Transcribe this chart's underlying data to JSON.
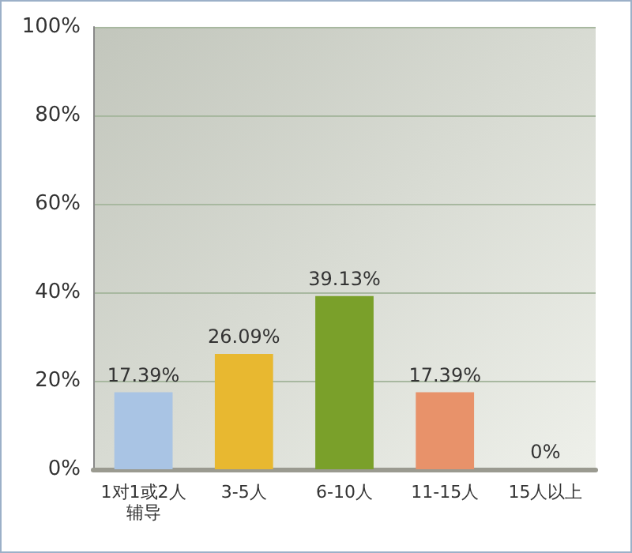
{
  "chart_data": {
    "type": "bar",
    "categories": [
      "1对1或2人辅导",
      "3-5人",
      "6-10人",
      "11-15人",
      "15人以上"
    ],
    "values": [
      17.39,
      26.09,
      39.13,
      17.39,
      0
    ],
    "colors": [
      "#a9c4e4",
      "#e8b830",
      "#7aa02a",
      "#e8926a",
      "#3aa8b0"
    ],
    "value_labels": [
      "17.39%",
      "26.09%",
      "39.13%",
      "17.39%",
      "0%"
    ],
    "ylim": [
      0,
      100
    ],
    "yticks": [
      {
        "value": 0,
        "label": "0%"
      },
      {
        "value": 20,
        "label": "20%"
      },
      {
        "value": 40,
        "label": "40%"
      },
      {
        "value": 60,
        "label": "60%"
      },
      {
        "value": 80,
        "label": "80%"
      },
      {
        "value": 100,
        "label": "100%"
      }
    ],
    "grid": true
  }
}
